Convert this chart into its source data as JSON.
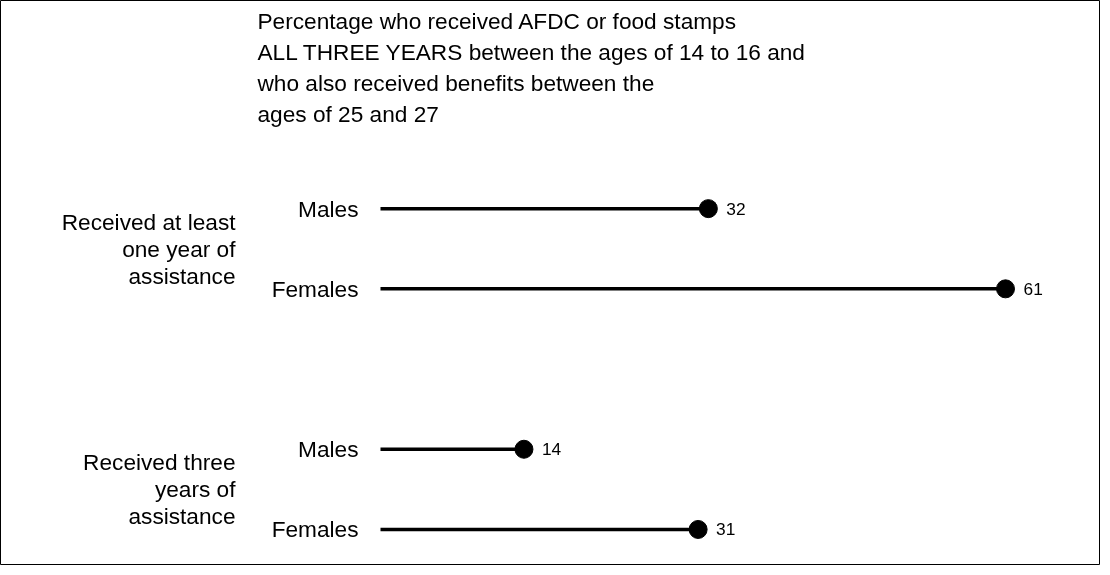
{
  "chart_data": {
    "type": "lollipop",
    "orientation": "horizontal",
    "title": "Percentage who received AFDC or food stamps\nALL THREE YEARS between the ages of 14 to 16 and\nwho also received benefits between the\nages of 25 and 27",
    "categories": [
      "Males",
      "Females",
      null,
      "Males",
      "Females"
    ],
    "values": [
      32,
      61,
      null,
      14,
      31
    ],
    "color": "#000000",
    "marker": "circle",
    "line_style": "solid",
    "data_labels": true,
    "annotations": [
      "Received at least\none year of\nassistance",
      "Received three\nyears of\nassistance"
    ]
  }
}
